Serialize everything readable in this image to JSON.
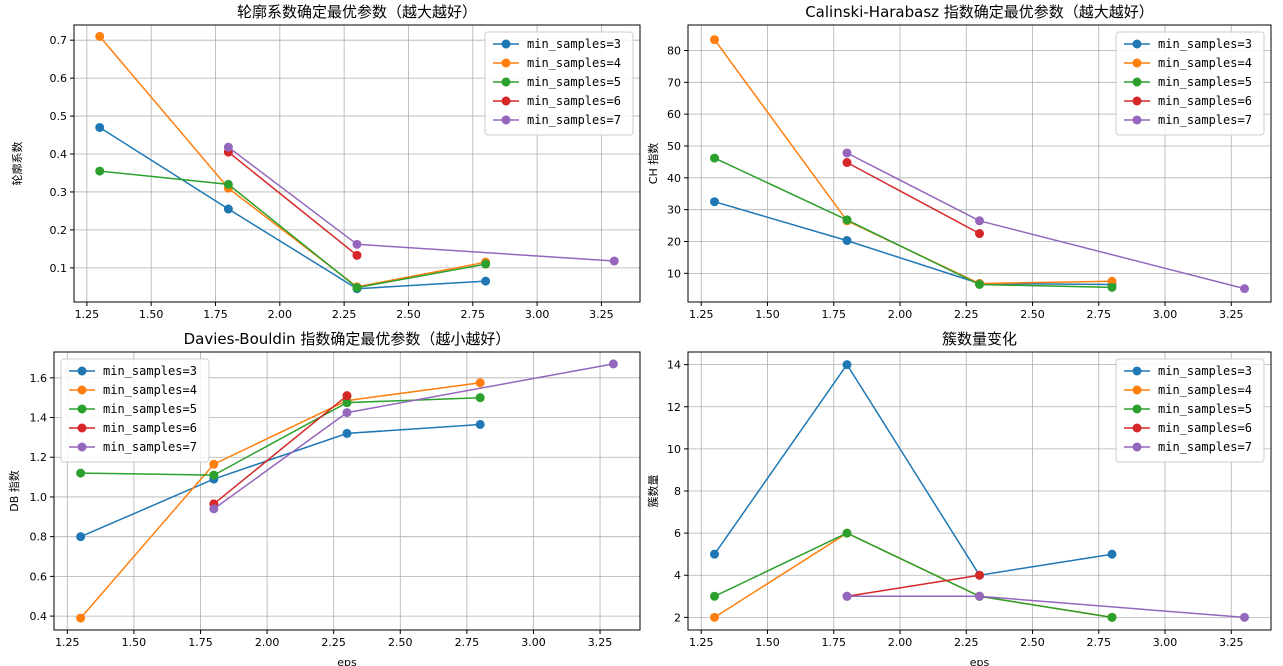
{
  "series_colors": [
    "#1f77b4",
    "#ff7f0e",
    "#2ca02c",
    "#d62728",
    "#9467bd"
  ],
  "chart_data": [
    {
      "type": "line",
      "title": "轮廓系数确定最优参数（越大越好）",
      "xlabel": "",
      "ylabel": "轮廓系数",
      "xlim": [
        1.2,
        3.4
      ],
      "ylim": [
        0.01,
        0.74
      ],
      "xticks": [
        1.25,
        1.5,
        1.75,
        2.0,
        2.25,
        2.5,
        2.75,
        3.0,
        3.25
      ],
      "xtick_labels": [
        "1.25",
        "1.50",
        "1.75",
        "2.00",
        "2.25",
        "2.50",
        "2.75",
        "3.00",
        "3.25"
      ],
      "yticks": [
        0.1,
        0.2,
        0.3,
        0.4,
        0.5,
        0.6,
        0.7
      ],
      "ytick_labels": [
        "0.1",
        "0.2",
        "0.3",
        "0.4",
        "0.5",
        "0.6",
        "0.7"
      ],
      "grid": true,
      "legend": "top-right",
      "series": [
        {
          "name": "min_samples=3",
          "x": [
            1.3,
            1.8,
            2.3,
            2.8
          ],
          "y": [
            0.47,
            0.255,
            0.045,
            0.065
          ]
        },
        {
          "name": "min_samples=4",
          "x": [
            1.3,
            1.8,
            2.3,
            2.8
          ],
          "y": [
            0.71,
            0.31,
            0.05,
            0.115
          ]
        },
        {
          "name": "min_samples=5",
          "x": [
            1.3,
            1.8,
            2.3,
            2.8
          ],
          "y": [
            0.355,
            0.32,
            0.048,
            0.11
          ]
        },
        {
          "name": "min_samples=6",
          "x": [
            1.8,
            2.3
          ],
          "y": [
            0.405,
            0.133
          ]
        },
        {
          "name": "min_samples=7",
          "x": [
            1.8,
            2.3,
            3.3
          ],
          "y": [
            0.418,
            0.162,
            0.118
          ]
        }
      ]
    },
    {
      "type": "line",
      "title": "Calinski-Harabasz 指数确定最优参数（越大越好）",
      "xlabel": "",
      "ylabel": "CH 指数",
      "xlim": [
        1.2,
        3.4
      ],
      "ylim": [
        1,
        88
      ],
      "xticks": [
        1.25,
        1.5,
        1.75,
        2.0,
        2.25,
        2.5,
        2.75,
        3.0,
        3.25
      ],
      "xtick_labels": [
        "1.25",
        "1.50",
        "1.75",
        "2.00",
        "2.25",
        "2.50",
        "2.75",
        "3.00",
        "3.25"
      ],
      "yticks": [
        10,
        20,
        30,
        40,
        50,
        60,
        70,
        80
      ],
      "ytick_labels": [
        "10",
        "20",
        "30",
        "40",
        "50",
        "60",
        "70",
        "80"
      ],
      "grid": true,
      "legend": "top-right",
      "series": [
        {
          "name": "min_samples=3",
          "x": [
            1.3,
            1.8,
            2.3,
            2.8
          ],
          "y": [
            32.5,
            20.3,
            6.8,
            6.5
          ]
        },
        {
          "name": "min_samples=4",
          "x": [
            1.3,
            1.8,
            2.3,
            2.8
          ],
          "y": [
            83.4,
            26.5,
            6.8,
            7.5
          ]
        },
        {
          "name": "min_samples=5",
          "x": [
            1.3,
            1.8,
            2.3,
            2.8
          ],
          "y": [
            46.2,
            26.8,
            6.5,
            5.6
          ]
        },
        {
          "name": "min_samples=6",
          "x": [
            1.8,
            2.3
          ],
          "y": [
            44.8,
            22.5
          ]
        },
        {
          "name": "min_samples=7",
          "x": [
            1.8,
            2.3,
            3.3
          ],
          "y": [
            47.8,
            26.5,
            5.2
          ]
        }
      ]
    },
    {
      "type": "line",
      "title": "Davies-Bouldin 指数确定最优参数（越小越好）",
      "xlabel": "eps",
      "ylabel": "DB 指数",
      "xlim": [
        1.2,
        3.4
      ],
      "ylim": [
        0.33,
        1.73
      ],
      "xticks": [
        1.25,
        1.5,
        1.75,
        2.0,
        2.25,
        2.5,
        2.75,
        3.0,
        3.25
      ],
      "xtick_labels": [
        "1.25",
        "1.50",
        "1.75",
        "2.00",
        "2.25",
        "2.50",
        "2.75",
        "3.00",
        "3.25"
      ],
      "yticks": [
        0.4,
        0.6,
        0.8,
        1.0,
        1.2,
        1.4,
        1.6
      ],
      "ytick_labels": [
        "0.4",
        "0.6",
        "0.8",
        "1.0",
        "1.2",
        "1.4",
        "1.6"
      ],
      "grid": true,
      "legend": "top-left",
      "series": [
        {
          "name": "min_samples=3",
          "x": [
            1.3,
            1.8,
            2.3,
            2.8
          ],
          "y": [
            0.8,
            1.09,
            1.32,
            1.365
          ]
        },
        {
          "name": "min_samples=4",
          "x": [
            1.3,
            1.8,
            2.3,
            2.8
          ],
          "y": [
            0.39,
            1.165,
            1.485,
            1.575
          ]
        },
        {
          "name": "min_samples=5",
          "x": [
            1.3,
            1.8,
            2.3,
            2.8
          ],
          "y": [
            1.12,
            1.11,
            1.475,
            1.5
          ]
        },
        {
          "name": "min_samples=6",
          "x": [
            1.8,
            2.3
          ],
          "y": [
            0.965,
            1.51
          ]
        },
        {
          "name": "min_samples=7",
          "x": [
            1.8,
            2.3,
            3.3
          ],
          "y": [
            0.94,
            1.425,
            1.67
          ]
        }
      ]
    },
    {
      "type": "line",
      "title": "簇数量变化",
      "xlabel": "eps",
      "ylabel": "簇数量",
      "xlim": [
        1.2,
        3.4
      ],
      "ylim": [
        1.4,
        14.6
      ],
      "xticks": [
        1.25,
        1.5,
        1.75,
        2.0,
        2.25,
        2.5,
        2.75,
        3.0,
        3.25
      ],
      "xtick_labels": [
        "1.25",
        "1.50",
        "1.75",
        "2.00",
        "2.25",
        "2.50",
        "2.75",
        "3.00",
        "3.25"
      ],
      "yticks": [
        2,
        4,
        6,
        8,
        10,
        12,
        14
      ],
      "ytick_labels": [
        "2",
        "4",
        "6",
        "8",
        "10",
        "12",
        "14"
      ],
      "grid": true,
      "legend": "top-right",
      "series": [
        {
          "name": "min_samples=3",
          "x": [
            1.3,
            1.8,
            2.3,
            2.8
          ],
          "y": [
            5,
            14,
            4,
            5
          ]
        },
        {
          "name": "min_samples=4",
          "x": [
            1.3,
            1.8,
            2.3,
            2.8
          ],
          "y": [
            2,
            6,
            3,
            2
          ]
        },
        {
          "name": "min_samples=5",
          "x": [
            1.3,
            1.8,
            2.3,
            2.8
          ],
          "y": [
            3,
            6,
            3,
            2
          ]
        },
        {
          "name": "min_samples=6",
          "x": [
            1.8,
            2.3
          ],
          "y": [
            3,
            4
          ]
        },
        {
          "name": "min_samples=7",
          "x": [
            1.8,
            2.3,
            3.3
          ],
          "y": [
            3,
            3,
            2
          ]
        }
      ]
    }
  ]
}
